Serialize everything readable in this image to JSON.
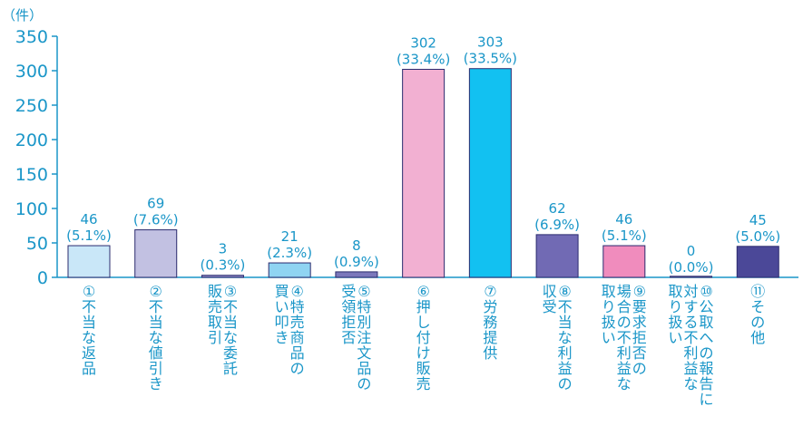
{
  "chart_data": {
    "type": "bar",
    "unit_label": "（件）",
    "ylim": [
      0,
      350
    ],
    "yticks": [
      0,
      50,
      100,
      150,
      200,
      250,
      300,
      350
    ],
    "grid": false,
    "legend": "none",
    "categories": [
      "①不当な返品",
      "②不当な値引き",
      "③不当な委託販売取引",
      "④特売商品の買い叩き",
      "⑤特別注文品の受領拒否",
      "⑥押し付け販売",
      "⑦労務提供",
      "⑧不当な利益の収受",
      "⑨要求拒否の場合の不利益な取り扱い",
      "⑩公取への報告に対する不利益な取り扱い",
      "⑪その他"
    ],
    "category_lines": [
      [
        "①不当な返品"
      ],
      [
        "②不当な値引き"
      ],
      [
        "③不当な委託",
        "販売取引"
      ],
      [
        "④特売商品の",
        "買い叩き"
      ],
      [
        "⑤特別注文品の",
        "受領拒否"
      ],
      [
        "⑥押し付け販売"
      ],
      [
        "⑦労務提供"
      ],
      [
        "⑧不当な利益の",
        "収受"
      ],
      [
        "⑨要求拒否の",
        "場合の不利益な",
        "取り扱い"
      ],
      [
        "⑩公取への報告に",
        "対する不利益な",
        "取り扱い"
      ],
      [
        "⑪その他"
      ]
    ],
    "values": [
      46,
      69,
      3,
      21,
      8,
      302,
      303,
      62,
      46,
      0,
      45
    ],
    "percent_labels": [
      "(5.1%)",
      "(7.6%)",
      "(0.3%)",
      "(2.3%)",
      "(0.9%)",
      "(33.4%)",
      "(33.5%)",
      "(6.9%)",
      "(5.1%)",
      "(0.0%)",
      "(5.0%)"
    ],
    "colors": [
      "#c9e7f8",
      "#c2c1e2",
      "#8c8ac6",
      "#8fd4f2",
      "#7b78bb",
      "#f2b0d2",
      "#12c1f1",
      "#716ab4",
      "#f08cbd",
      "#8c8ac6",
      "#4b4898"
    ],
    "axis_color": "#1a96c8",
    "bar_stroke": "#2b2b6e"
  }
}
